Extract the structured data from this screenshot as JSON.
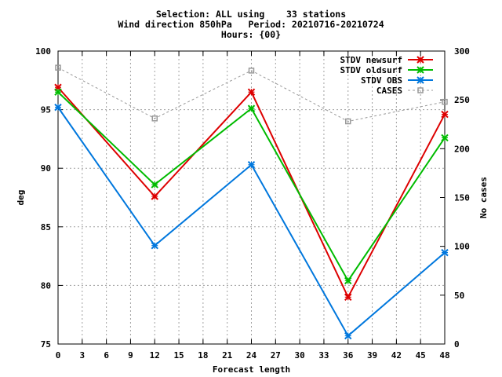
{
  "chart_data": {
    "type": "line",
    "title_lines": [
      "Selection: ALL using    33 stations",
      "Wind direction 850hPa   Period: 20210716-20210724",
      "Hours: {00}"
    ],
    "xlabel": "Forecast length",
    "ylabel": "deg",
    "y2label": "No cases",
    "xlim": [
      0,
      48
    ],
    "ylim": [
      75,
      100
    ],
    "y2lim": [
      0,
      300
    ],
    "xticks": [
      0,
      3,
      6,
      9,
      12,
      15,
      18,
      21,
      24,
      27,
      30,
      33,
      36,
      39,
      42,
      45,
      48
    ],
    "yticks": [
      75,
      80,
      85,
      90,
      95,
      100
    ],
    "y2ticks": [
      0,
      50,
      100,
      150,
      200,
      250,
      300
    ],
    "grid": true,
    "legend_position": "top-right",
    "x": [
      0,
      12,
      24,
      36,
      48
    ],
    "series": [
      {
        "name": "STDV newsurf",
        "color": "#dd0000",
        "axis": "y",
        "style": "solid",
        "marker": "x",
        "values": [
          96.9,
          87.6,
          96.5,
          79.0,
          94.6
        ]
      },
      {
        "name": "STDV oldsurf",
        "color": "#00bb00",
        "axis": "y",
        "style": "solid",
        "marker": "x",
        "values": [
          96.5,
          88.6,
          95.1,
          80.4,
          92.6
        ]
      },
      {
        "name": "STDV OBS",
        "color": "#0077dd",
        "axis": "y",
        "style": "solid",
        "marker": "x",
        "values": [
          95.2,
          83.4,
          90.3,
          75.7,
          82.8
        ]
      },
      {
        "name": "CASES",
        "color": "#999999",
        "axis": "y2",
        "style": "dashed",
        "marker": "square",
        "values": [
          283,
          231,
          280,
          228,
          248
        ]
      }
    ]
  }
}
